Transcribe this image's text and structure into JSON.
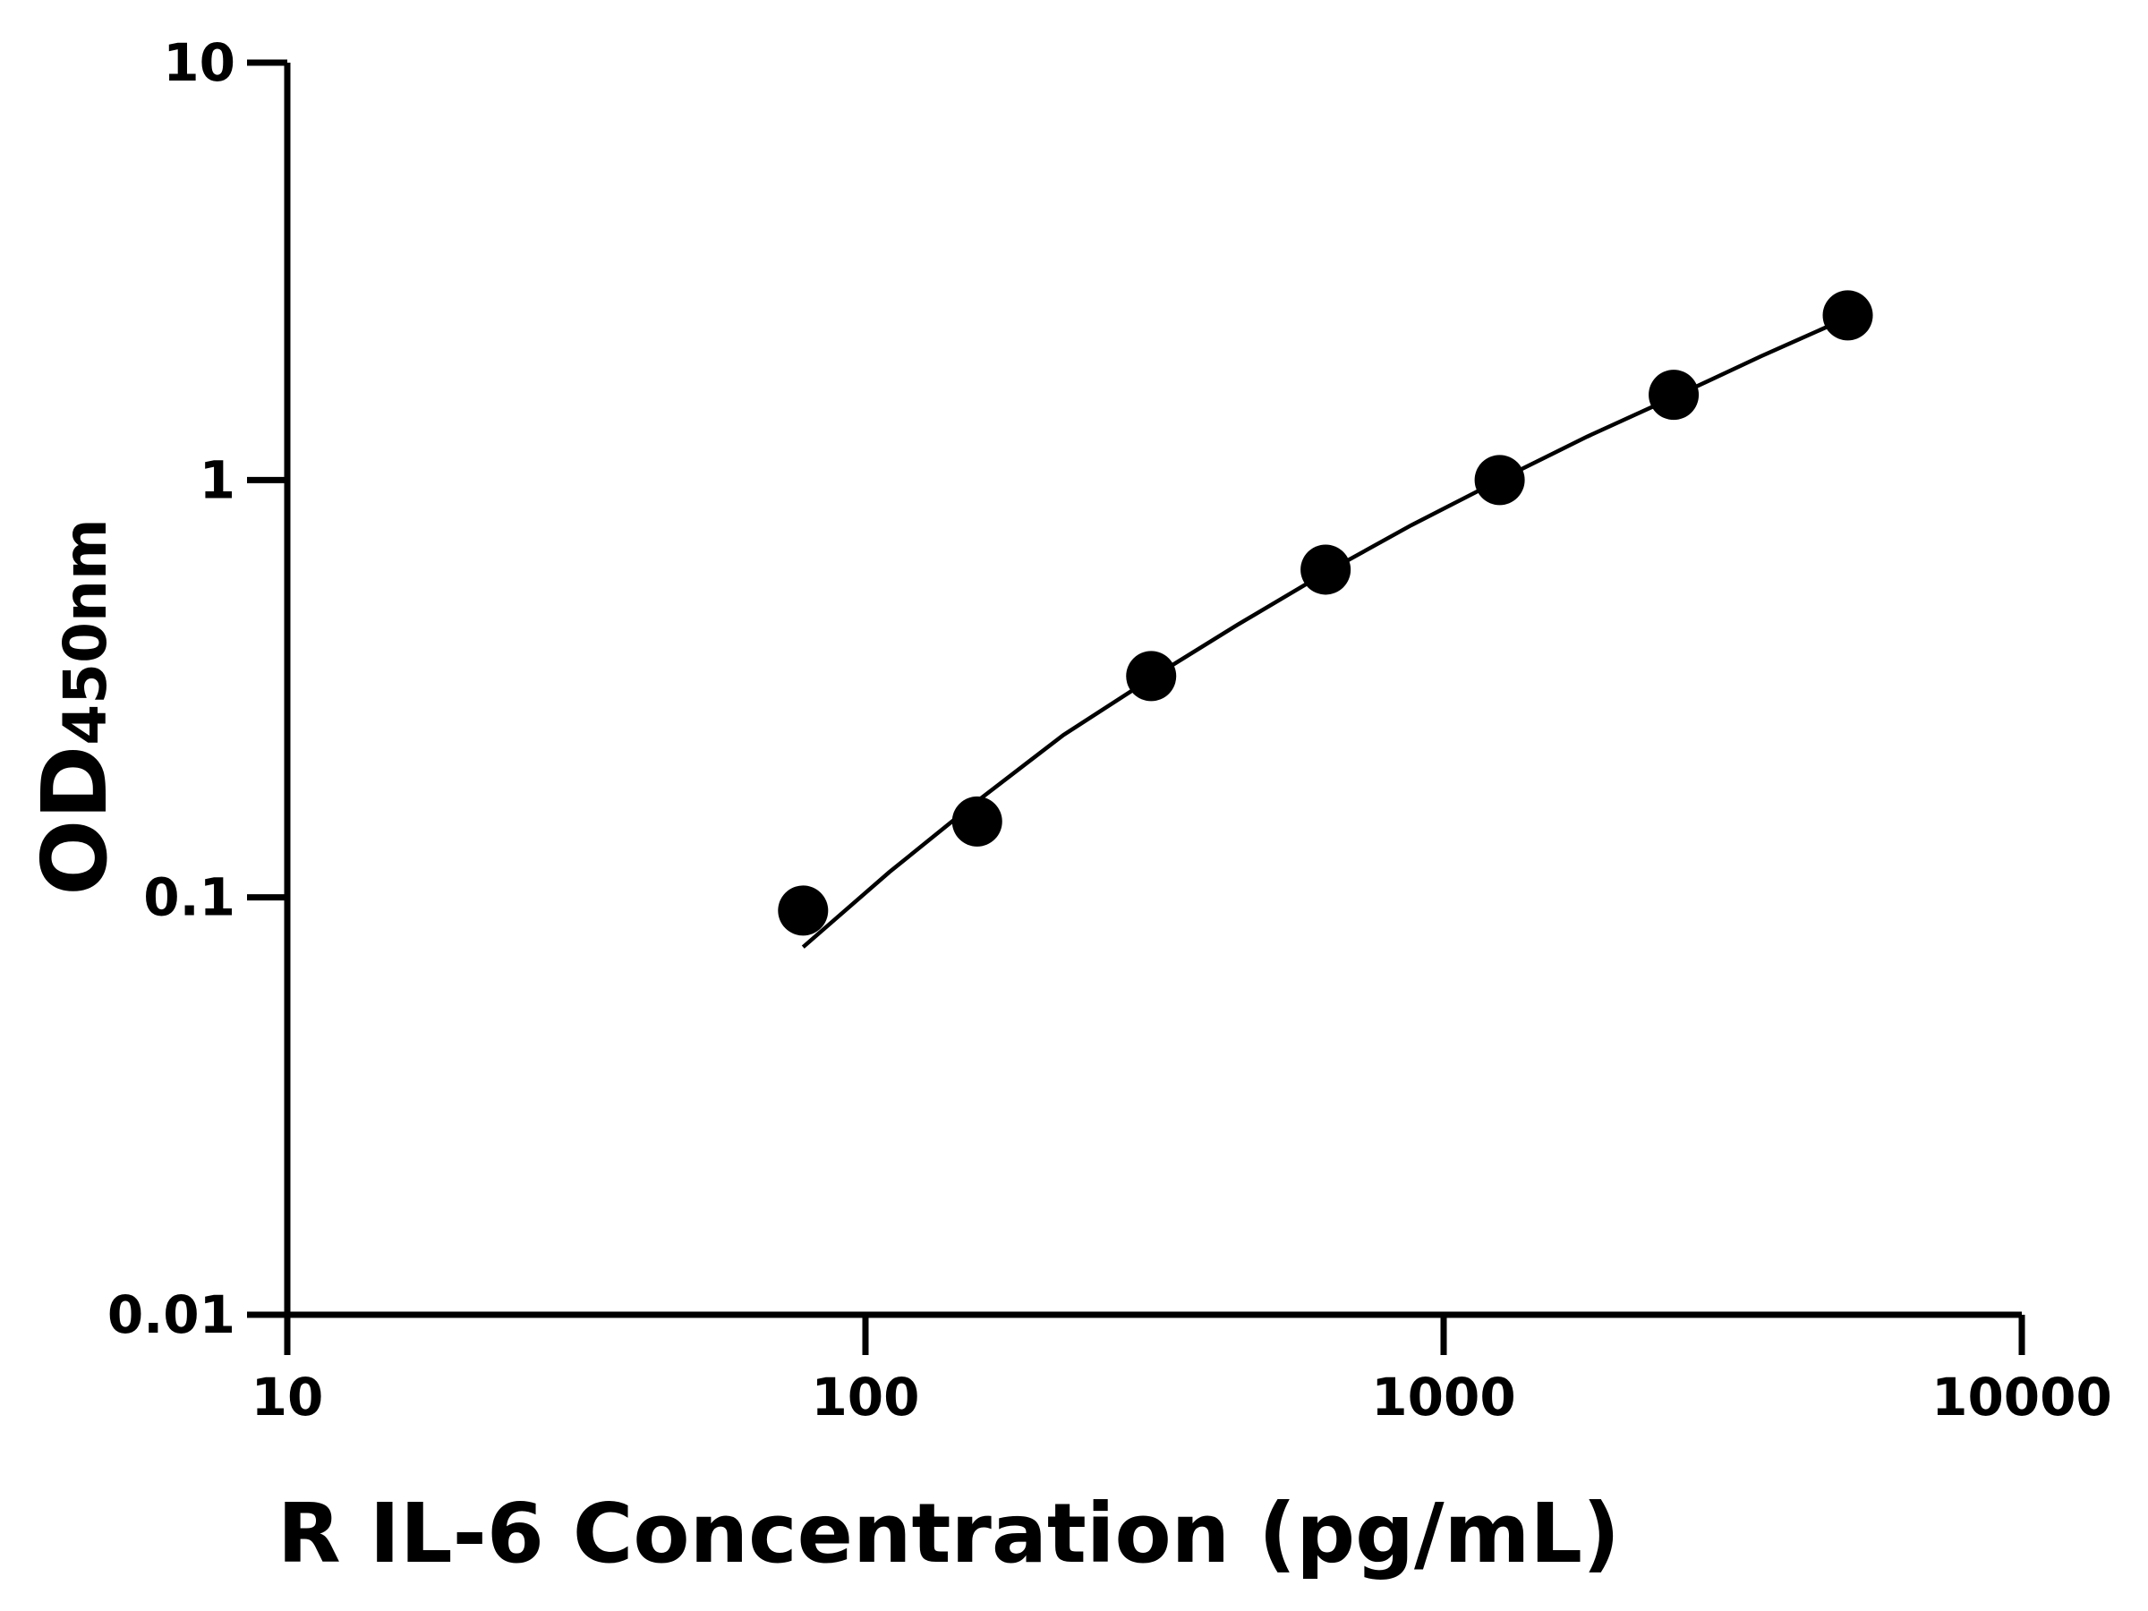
{
  "chart_data": {
    "type": "scatter",
    "xlabel": "R IL-6 Concentration (pg/mL)",
    "ylabel_main": "OD",
    "ylabel_sub": "450nm",
    "x_scale": "log",
    "y_scale": "log",
    "xlim": [
      10,
      10000
    ],
    "ylim": [
      0.01,
      10
    ],
    "x_ticks": [
      "10",
      "100",
      "1000",
      "10000"
    ],
    "y_ticks": [
      "0.01",
      "0.1",
      "1",
      "10"
    ],
    "grid": false,
    "series": [
      {
        "type": "scatter",
        "x": [
          78,
          156,
          312,
          625,
          1250,
          2500,
          5000
        ],
        "y": [
          0.093,
          0.152,
          0.339,
          0.61,
          1.0,
          1.6,
          2.48
        ]
      },
      {
        "type": "line",
        "x": [
          78,
          110,
          156,
          220,
          312,
          440,
          625,
          880,
          1250,
          1770,
          2500,
          3540,
          5000
        ],
        "y": [
          0.076,
          0.115,
          0.17,
          0.245,
          0.335,
          0.45,
          0.6,
          0.78,
          1.0,
          1.27,
          1.58,
          1.98,
          2.45
        ]
      }
    ],
    "colors": {
      "marker": "#000000",
      "line": "#000000",
      "axis": "#000000"
    }
  }
}
